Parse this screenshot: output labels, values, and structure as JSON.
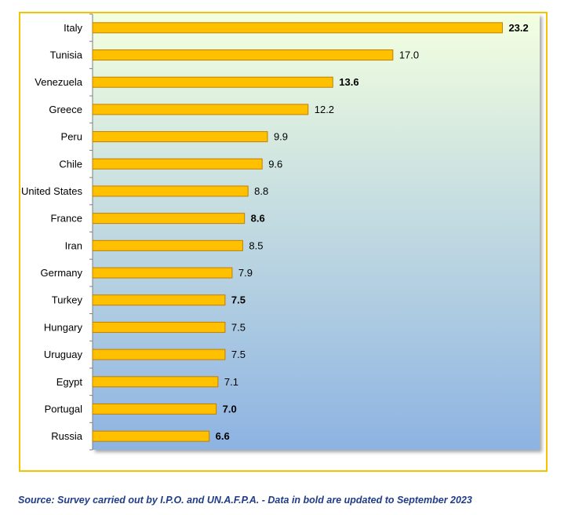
{
  "chart_data": {
    "type": "bar",
    "orientation": "horizontal",
    "categories": [
      "Italy",
      "Tunisia",
      "Venezuela",
      "Greece",
      "Peru",
      "Chile",
      "United States",
      "France",
      "Iran",
      "Germany",
      "Turkey",
      "Hungary",
      "Uruguay",
      "Egypt",
      "Portugal",
      "Russia"
    ],
    "values": [
      23.2,
      17.0,
      13.6,
      12.2,
      9.9,
      9.6,
      8.8,
      8.6,
      8.5,
      7.9,
      7.5,
      7.5,
      7.5,
      7.1,
      7.0,
      6.6
    ],
    "value_labels": [
      "23.2",
      "17.0",
      "13.6",
      "12.2",
      "9.9",
      "9.6",
      "8.8",
      "8.6",
      "8.5",
      "7.9",
      "7.5",
      "7.5",
      "7.5",
      "7.1",
      "7.0",
      "6.6"
    ],
    "bold": [
      true,
      false,
      true,
      false,
      false,
      false,
      false,
      true,
      false,
      false,
      true,
      false,
      false,
      false,
      true,
      true
    ],
    "xlim": [
      0,
      25
    ],
    "grid": false,
    "bar_color": "#ffc000",
    "bar_border_color": "#c07f00",
    "background_gradient": [
      "#f3ffe0",
      "#8db3e2"
    ]
  },
  "footer": {
    "source": "Source: Survey carried out by I.P.O. and UN.A.F.P.A. - Data in bold are updated to September 2023"
  }
}
